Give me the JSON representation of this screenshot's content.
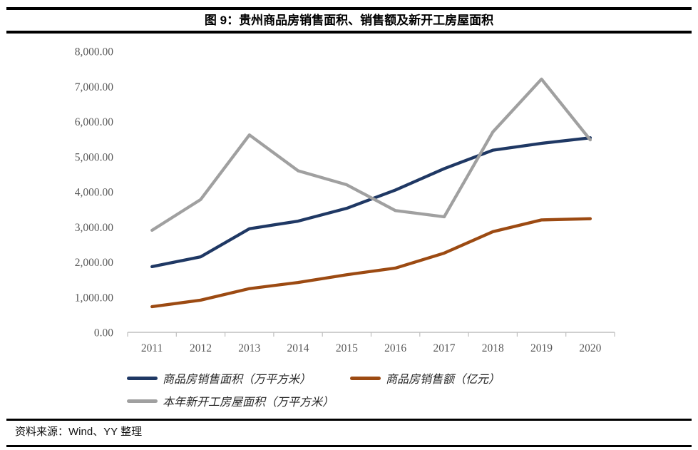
{
  "figure": {
    "title": "图 9：贵州商品房销售面积、销售额及新开工房屋面积",
    "source": "资料来源：Wind、YY 整理"
  },
  "colors": {
    "sales_area": "#1F3864",
    "sales_amount": "#9C4A12",
    "new_starts": "#A0A0A0",
    "axis_line": "#BFBFBF",
    "tick_label": "#595959",
    "rule": "#000000"
  },
  "chart_data": {
    "type": "line",
    "title": "图 9：贵州商州商品房销售面积、销售额及新开工房屋面积",
    "categories": [
      "2011",
      "2012",
      "2013",
      "2014",
      "2015",
      "2016",
      "2017",
      "2018",
      "2019",
      "2020"
    ],
    "series": [
      {
        "name": "商品房销售面积（万平方米）",
        "key": "sales_area",
        "values": [
          1870,
          2150,
          2950,
          3165,
          3530,
          4050,
          4660,
          5185,
          5380,
          5540
        ]
      },
      {
        "name": "商品房销售额（亿元）",
        "key": "sales_amount",
        "values": [
          730,
          915,
          1245,
          1420,
          1640,
          1830,
          2255,
          2865,
          3200,
          3235
        ]
      },
      {
        "name": "本年新开工房屋面积（万平方米）",
        "key": "new_starts",
        "values": [
          2905,
          3780,
          5620,
          4600,
          4200,
          3465,
          3290,
          5705,
          7210,
          5480
        ]
      }
    ],
    "xlabel": "",
    "ylabel": "",
    "ylim": [
      0,
      8000
    ],
    "ytick_step": 1000,
    "ytick_labels": [
      "0.00",
      "1,000.00",
      "2,000.00",
      "3,000.00",
      "4,000.00",
      "5,000.00",
      "6,000.00",
      "7,000.00",
      "8,000.00"
    ],
    "grid": false,
    "legend_position": "bottom-left"
  }
}
